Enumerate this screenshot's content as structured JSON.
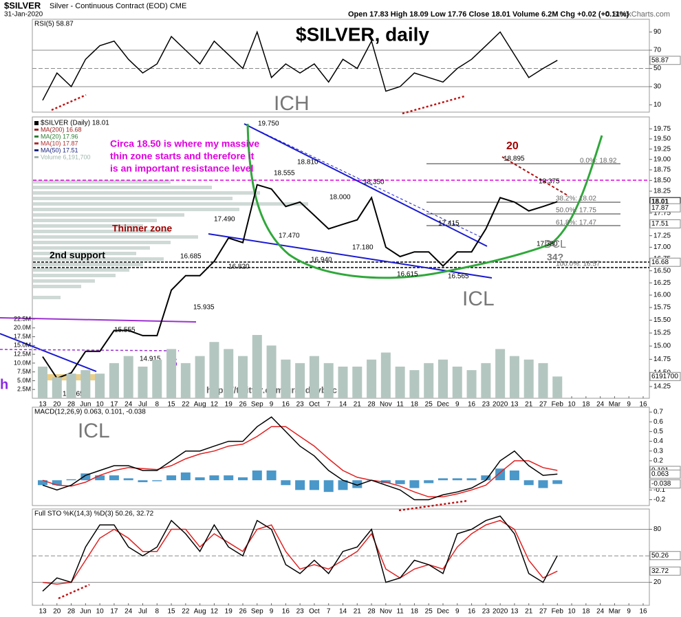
{
  "header": {
    "symbol": "$SILVER",
    "description": "Silver - Continuous Contract (EOD) CME",
    "date": "31-Jan-2020",
    "quote": "Open 17.83 High 18.09 Low 17.76 Close 18.01 Volume 6.2M Chg +0.02 (+0.11%)",
    "credit": "© StockCharts.com"
  },
  "chart_data": [
    {
      "type": "line",
      "label": "RSI(5) 58.87",
      "ylim": [
        2,
        104
      ],
      "yticks": [
        10,
        30,
        50,
        70,
        90
      ],
      "levels": [
        70,
        50,
        30
      ],
      "axis_boxes": [
        "58.87"
      ],
      "series": [
        {
          "name": "RSI(5)",
          "color": "#000000",
          "values": [
            15,
            45,
            30,
            60,
            75,
            80,
            60,
            45,
            55,
            85,
            70,
            55,
            80,
            65,
            50,
            90,
            40,
            55,
            45,
            55,
            35,
            60,
            50,
            80,
            25,
            30,
            45,
            40,
            35,
            50,
            60,
            75,
            90,
            65,
            40,
            50,
            58.87,
            null,
            null,
            null,
            null,
            null,
            null
          ]
        }
      ]
    },
    {
      "type": "line",
      "title": "$SILVER, daily",
      "log": true,
      "ylim": [
        14.04,
        20.05
      ],
      "yticks": [
        19.75,
        {
          "value": 19.5,
          "label": "19.50"
        },
        19.25,
        {
          "value": 19,
          "label": "19.00"
        },
        18.75,
        {
          "value": 18.5,
          "label": "18.50"
        },
        18.25,
        {
          "value": 18,
          "label": "18.00"
        },
        17.75,
        {
          "value": 17.5,
          "label": "17.50"
        },
        17.25,
        {
          "value": 17,
          "label": "17.00"
        },
        16.75,
        {
          "value": 16.5,
          "label": "16.50"
        },
        16.25,
        {
          "value": 16,
          "label": "16.00"
        },
        15.75,
        {
          "value": 15.5,
          "label": "15.50"
        },
        15.25,
        {
          "value": 15,
          "label": "15.00"
        },
        14.75,
        {
          "value": 14.5,
          "label": "14.50"
        },
        14.25
      ],
      "categories": [
        "13",
        "20",
        "28",
        "Jun",
        "10",
        "17",
        "24",
        "Jul",
        "8",
        "15",
        "22",
        "Aug",
        "12",
        "19",
        "26",
        "Sep",
        "9",
        "16",
        "23",
        "Oct",
        "7",
        "14",
        "21",
        "28",
        "Nov",
        "11",
        "18",
        "25",
        "Dec",
        "9",
        "16",
        "23",
        "2020",
        "13",
        "21",
        "27",
        "Feb",
        "10",
        "18",
        "24",
        "Mar",
        "9",
        "16"
      ],
      "series": [
        {
          "name": "$SILVER (Daily) 18.01",
          "color": "#000000",
          "values": [
            14.8,
            14.4,
            14.5,
            14.9,
            14.9,
            15.3,
            15.3,
            15.2,
            15.2,
            16.1,
            16.4,
            16.4,
            16.7,
            17.2,
            17.1,
            18.4,
            18.3,
            17.9,
            18.0,
            17.7,
            17.4,
            17.5,
            17.6,
            18.1,
            17.0,
            16.8,
            16.9,
            16.9,
            16.6,
            16.9,
            16.9,
            17.4,
            18.1,
            18.0,
            17.8,
            17.9,
            18.01,
            null,
            null,
            null,
            null,
            null,
            null
          ]
        }
      ],
      "indicators": [
        {
          "name": "MA(200) 16.68",
          "color": "#a02020"
        },
        {
          "name": "MA(20) 17.96",
          "color": "#2e7d32"
        },
        {
          "name": "MA(10) 17.87",
          "color": "#b03030"
        },
        {
          "name": "MA(50) 17.51",
          "color": "#1a237e"
        },
        {
          "name": "Volume 6,191,700",
          "color": "#9fb5ae"
        }
      ],
      "axis_boxes": [
        "18.01",
        "17.87",
        "17.51",
        "16.68"
      ],
      "annotations": [
        "ICH",
        "ICL",
        "ICL",
        "Circa 18.50 is where my massive",
        "thin zone starts and therefore it",
        "is an important resistance level",
        "Thinner zone",
        "2nd support",
        "20",
        "DCL",
        "34?",
        "https://twitter.com/graddhybpc",
        "S",
        "h",
        "19.750",
        "18.810",
        "18.555",
        "18.350",
        "18.000",
        "17.490",
        "17.470",
        "17.180",
        "16.940",
        "16.685",
        "16.820",
        "15.935",
        "15.555",
        "14.915",
        "14.265",
        "16.615",
        "16.565",
        "17.415",
        "17.380",
        "18.895",
        "18.375",
        "0.0%: 18.92",
        "38.2%: 18.02",
        "50.0%: 17.75",
        "61.8%: 17.47",
        "100.0%: 16.57"
      ]
    },
    {
      "type": "bar",
      "color": "#b4c6c0",
      "ylim": [
        0,
        80000000
      ],
      "yticks": [
        {
          "value": 22500000,
          "label": "22.5M"
        },
        {
          "value": 20000000,
          "label": "20.0M"
        },
        {
          "value": 17500000,
          "label": "17.5M"
        },
        {
          "value": 15000000,
          "label": "15.0M"
        },
        {
          "value": 12500000,
          "label": "12.5M"
        },
        {
          "value": 10000000,
          "label": "10.0M"
        },
        {
          "value": 7500000,
          "label": "7.5M"
        },
        {
          "value": 5000000,
          "label": "5.0M"
        },
        {
          "value": 2500000,
          "label": "2.5M"
        }
      ],
      "axis_boxes": [
        "6191700"
      ],
      "values": [
        9000000,
        6000000,
        7000000,
        8000000,
        7000000,
        10000000,
        12000000,
        9000000,
        11000000,
        14000000,
        10000000,
        12000000,
        16000000,
        14000000,
        12000000,
        18000000,
        15000000,
        11000000,
        10000000,
        12000000,
        10000000,
        9000000,
        9000000,
        11000000,
        13000000,
        9000000,
        8000000,
        10000000,
        11000000,
        9000000,
        8000000,
        10000000,
        14000000,
        12000000,
        11000000,
        10000000,
        6191700,
        null,
        null,
        null,
        null,
        null,
        null
      ]
    },
    {
      "type": "line",
      "label": "MACD(12,26,9) 0.063, 0.101, -0.038",
      "ylim": [
        -0.26,
        0.75
      ],
      "yticks": [
        0.7,
        0.6,
        0.5,
        0.4,
        0.3,
        0.2,
        -0.1,
        -0.2
      ],
      "axis_boxes": [
        "0.101",
        "0.063",
        "-0.038"
      ],
      "series": [
        {
          "name": "Histogram",
          "type": "bar",
          "color": "#4a97c9",
          "values": [
            -0.05,
            -0.05,
            0.01,
            0.07,
            0.05,
            0.05,
            0.02,
            -0.02,
            -0.01,
            0.05,
            0.08,
            0.03,
            0.05,
            0.05,
            0.03,
            0.1,
            0.1,
            -0.05,
            -0.1,
            -0.1,
            -0.12,
            -0.1,
            -0.08,
            0,
            -0.03,
            -0.04,
            -0.08,
            -0.03,
            0.02,
            0.02,
            0.02,
            0.05,
            0.12,
            0.1,
            -0.05,
            -0.08,
            -0.038,
            null,
            null,
            null,
            null,
            null,
            null
          ]
        },
        {
          "name": "Signal",
          "color": "#e02020",
          "values": [
            0,
            -0.05,
            -0.06,
            -0.02,
            0.05,
            0.1,
            0.13,
            0.12,
            0.11,
            0.15,
            0.22,
            0.27,
            0.3,
            0.35,
            0.37,
            0.45,
            0.55,
            0.55,
            0.45,
            0.35,
            0.22,
            0.1,
            0.03,
            0,
            -0.02,
            -0.06,
            -0.12,
            -0.17,
            -0.17,
            -0.14,
            -0.1,
            -0.05,
            0.08,
            0.2,
            0.2,
            0.13,
            0.101,
            null,
            null,
            null,
            null,
            null,
            null
          ]
        },
        {
          "name": "MACD",
          "color": "#000000",
          "values": [
            -0.05,
            -0.1,
            -0.05,
            0.05,
            0.1,
            0.15,
            0.15,
            0.1,
            0.1,
            0.2,
            0.3,
            0.3,
            0.35,
            0.4,
            0.4,
            0.55,
            0.65,
            0.5,
            0.35,
            0.25,
            0.1,
            0,
            -0.05,
            0,
            -0.05,
            -0.1,
            -0.2,
            -0.2,
            -0.15,
            -0.12,
            -0.08,
            0,
            0.2,
            0.3,
            0.15,
            0.05,
            0.063,
            null,
            null,
            null,
            null,
            null,
            null
          ]
        }
      ]
    },
    {
      "type": "line",
      "label": "Full STO %K(14,3) %D(3) 50.26, 32.72",
      "ylim": [
        -6,
        103
      ],
      "yticks": [
        20,
        80
      ],
      "levels": [
        80,
        50,
        20
      ],
      "axis_boxes": [
        "50.26",
        "32.72"
      ],
      "categories": [
        "13",
        "20",
        "28",
        "Jun",
        "10",
        "17",
        "24",
        "Jul",
        "8",
        "15",
        "22",
        "Aug",
        "12",
        "19",
        "26",
        "Sep",
        "9",
        "16",
        "23",
        "Oct",
        "7",
        "14",
        "21",
        "28",
        "Nov",
        "11",
        "18",
        "25",
        "Dec",
        "9",
        "16",
        "23",
        "2020",
        "13",
        "21",
        "27",
        "Feb",
        "10",
        "18",
        "24",
        "Mar",
        "9",
        "16"
      ],
      "series": [
        {
          "name": "%D(3)",
          "color": "#e02020",
          "values": [
            20,
            18,
            20,
            45,
            70,
            80,
            70,
            55,
            55,
            80,
            80,
            60,
            75,
            65,
            55,
            80,
            85,
            55,
            35,
            40,
            35,
            45,
            55,
            75,
            35,
            25,
            35,
            40,
            35,
            60,
            75,
            85,
            90,
            80,
            45,
            25,
            32.72,
            null,
            null,
            null,
            null,
            null,
            null
          ]
        },
        {
          "name": "%K(14,3)",
          "color": "#000000",
          "values": [
            10,
            25,
            20,
            60,
            85,
            85,
            60,
            50,
            60,
            90,
            75,
            55,
            85,
            60,
            50,
            90,
            80,
            40,
            30,
            45,
            30,
            55,
            60,
            80,
            20,
            25,
            45,
            40,
            30,
            75,
            80,
            90,
            95,
            75,
            30,
            20,
            50.26,
            null,
            null,
            null,
            null,
            null,
            null
          ]
        }
      ]
    }
  ]
}
